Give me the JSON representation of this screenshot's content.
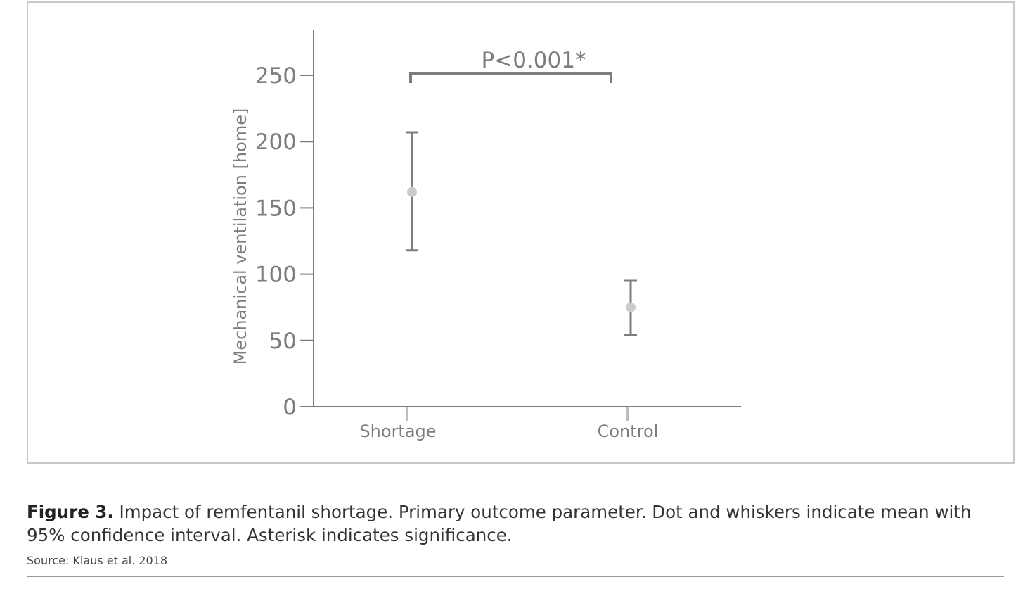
{
  "figure": {
    "label": "Figure 3.",
    "caption": " Impact of remfentanil shortage. Primary outcome parameter. Dot and whiskers indicate mean with 95% confidence interval. Asterisk indicates significance.",
    "source": "Source: Klaus et al. 2018"
  },
  "chart_data": {
    "type": "errorbar",
    "title": "",
    "xlabel": "",
    "ylabel": "Mechanical ventilation [home]",
    "ylim": [
      0,
      280
    ],
    "yticks": [
      0,
      50,
      100,
      150,
      200,
      250
    ],
    "categories": [
      "Shortage",
      "Control"
    ],
    "series": [
      {
        "points": [
          {
            "category": "Shortage",
            "mean": 162,
            "ci_low": 118,
            "ci_high": 207
          },
          {
            "category": "Control",
            "mean": 75,
            "ci_low": 54,
            "ci_high": 95
          }
        ]
      }
    ],
    "annotation": {
      "text": "P<0.001*",
      "bracket_y": 250,
      "between": [
        "Shortage",
        "Control"
      ]
    },
    "grid": false,
    "colors": {
      "axis": "#7d7d7d",
      "whisker": "#7d7d7d",
      "dot": "#c9cbd1",
      "category_tick": "#bdbdbd"
    }
  }
}
